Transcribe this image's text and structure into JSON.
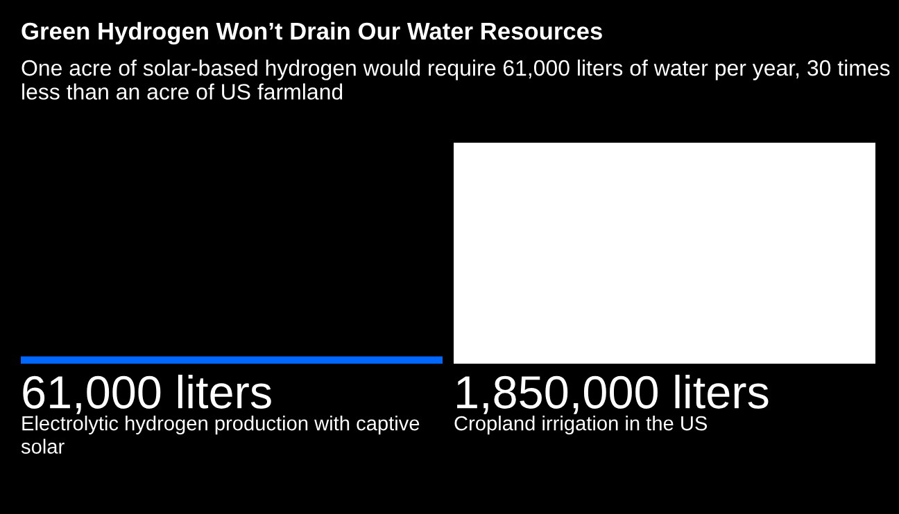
{
  "chart_data": {
    "type": "bar",
    "title": "Green Hydrogen Won’t Drain Our Water Resources",
    "subtitle": "One acre of solar-based hydrogen would require 61,000 liters of water per year, 30 times less than an acre of US farmland",
    "categories": [
      "Electrolytic hydrogen production with captive solar",
      "Cropland irrigation in the US"
    ],
    "values": [
      61000,
      1850000
    ],
    "colors": [
      "#0068ff",
      "#ffffff"
    ],
    "value_labels": [
      "61,000 liters",
      "1,850,000 liters"
    ]
  }
}
